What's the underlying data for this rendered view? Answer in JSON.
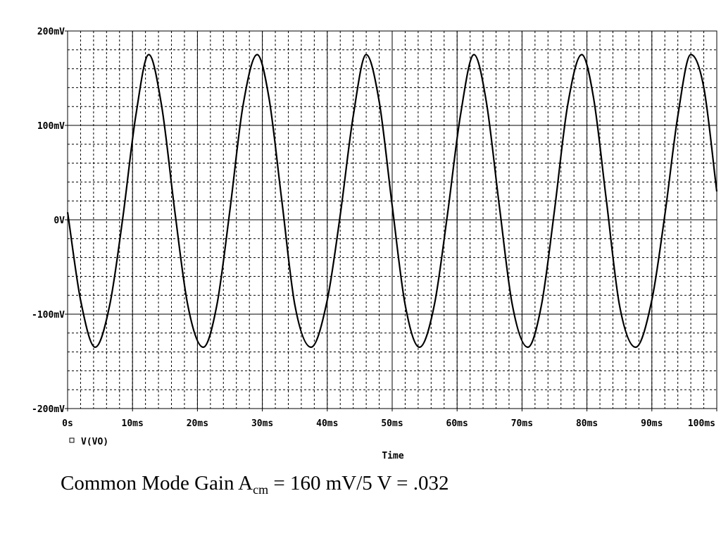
{
  "chart_data": {
    "type": "line",
    "title": "",
    "xlabel": "Time",
    "ylabel": "",
    "x_unit": "ms",
    "y_unit": "mV",
    "xlim": [
      0,
      100
    ],
    "ylim": [
      -200,
      200
    ],
    "x_ticks": [
      0,
      10,
      20,
      30,
      40,
      50,
      60,
      70,
      80,
      90,
      100
    ],
    "x_tick_labels": [
      "0s",
      "10ms",
      "20ms",
      "30ms",
      "40ms",
      "50ms",
      "60ms",
      "70ms",
      "80ms",
      "90ms",
      "100ms"
    ],
    "y_ticks": [
      -200,
      -100,
      0,
      100,
      200
    ],
    "y_tick_labels": [
      "-200mV",
      "-100mV",
      "0V",
      "100mV",
      "200mV"
    ],
    "grid": true,
    "legend_placement": "bottom-left",
    "series": [
      {
        "name": "V(VO)",
        "marker": "square",
        "color": "#000000",
        "x": [
          0,
          2,
          4.25,
          6.5,
          8.5,
          10.5,
          12.5,
          14.5,
          16.5,
          18.5,
          20.9,
          23,
          25,
          27,
          29.2,
          31,
          33,
          35,
          37.5,
          40,
          42,
          44,
          46,
          48,
          50,
          52,
          54.2,
          56.5,
          58.5,
          60.5,
          62.6,
          64.5,
          66.5,
          68.5,
          70.9,
          73,
          75,
          77,
          79.2,
          81,
          83,
          85,
          87.5,
          90,
          92,
          94,
          96,
          98,
          100
        ],
        "values": [
          8,
          -85,
          -135,
          -90,
          2,
          110,
          175,
          120,
          10,
          -90,
          -135,
          -90,
          10,
          120,
          175,
          130,
          20,
          -90,
          -135,
          -85,
          5,
          110,
          175,
          125,
          15,
          -90,
          -135,
          -90,
          5,
          110,
          175,
          125,
          15,
          -90,
          -135,
          -90,
          10,
          120,
          175,
          130,
          20,
          -90,
          -135,
          -85,
          5,
          110,
          175,
          140,
          30
        ]
      }
    ]
  },
  "caption": {
    "prefix": "Common Mode Gain A",
    "subscript": "cm",
    "suffix": " = 160 mV/5 V = .032"
  }
}
